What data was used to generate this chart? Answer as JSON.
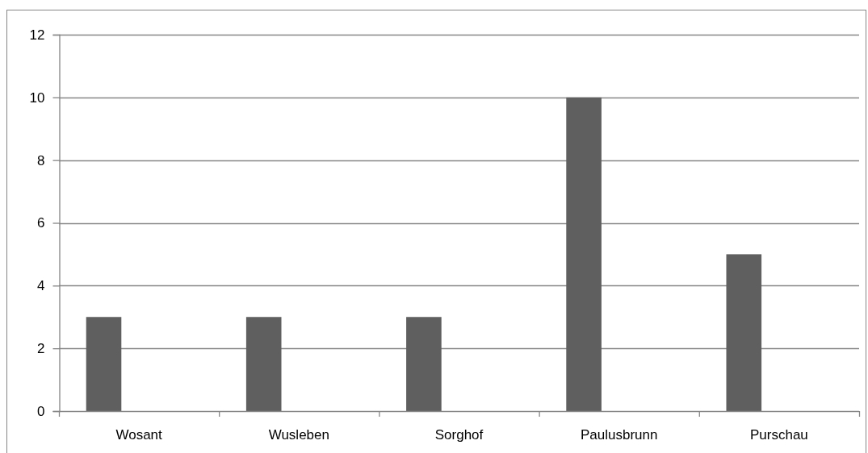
{
  "chart_data": {
    "type": "bar",
    "categories": [
      "Wosant",
      "Wusleben",
      "Sorghof",
      "Paulusbrunn",
      "Purschau"
    ],
    "values": [
      3,
      3,
      3,
      10,
      5
    ],
    "color": "#5f5f5f",
    "ylim": [
      0,
      12
    ],
    "yticks": [
      0,
      2,
      4,
      6,
      8,
      10,
      12
    ],
    "grid": "y"
  }
}
